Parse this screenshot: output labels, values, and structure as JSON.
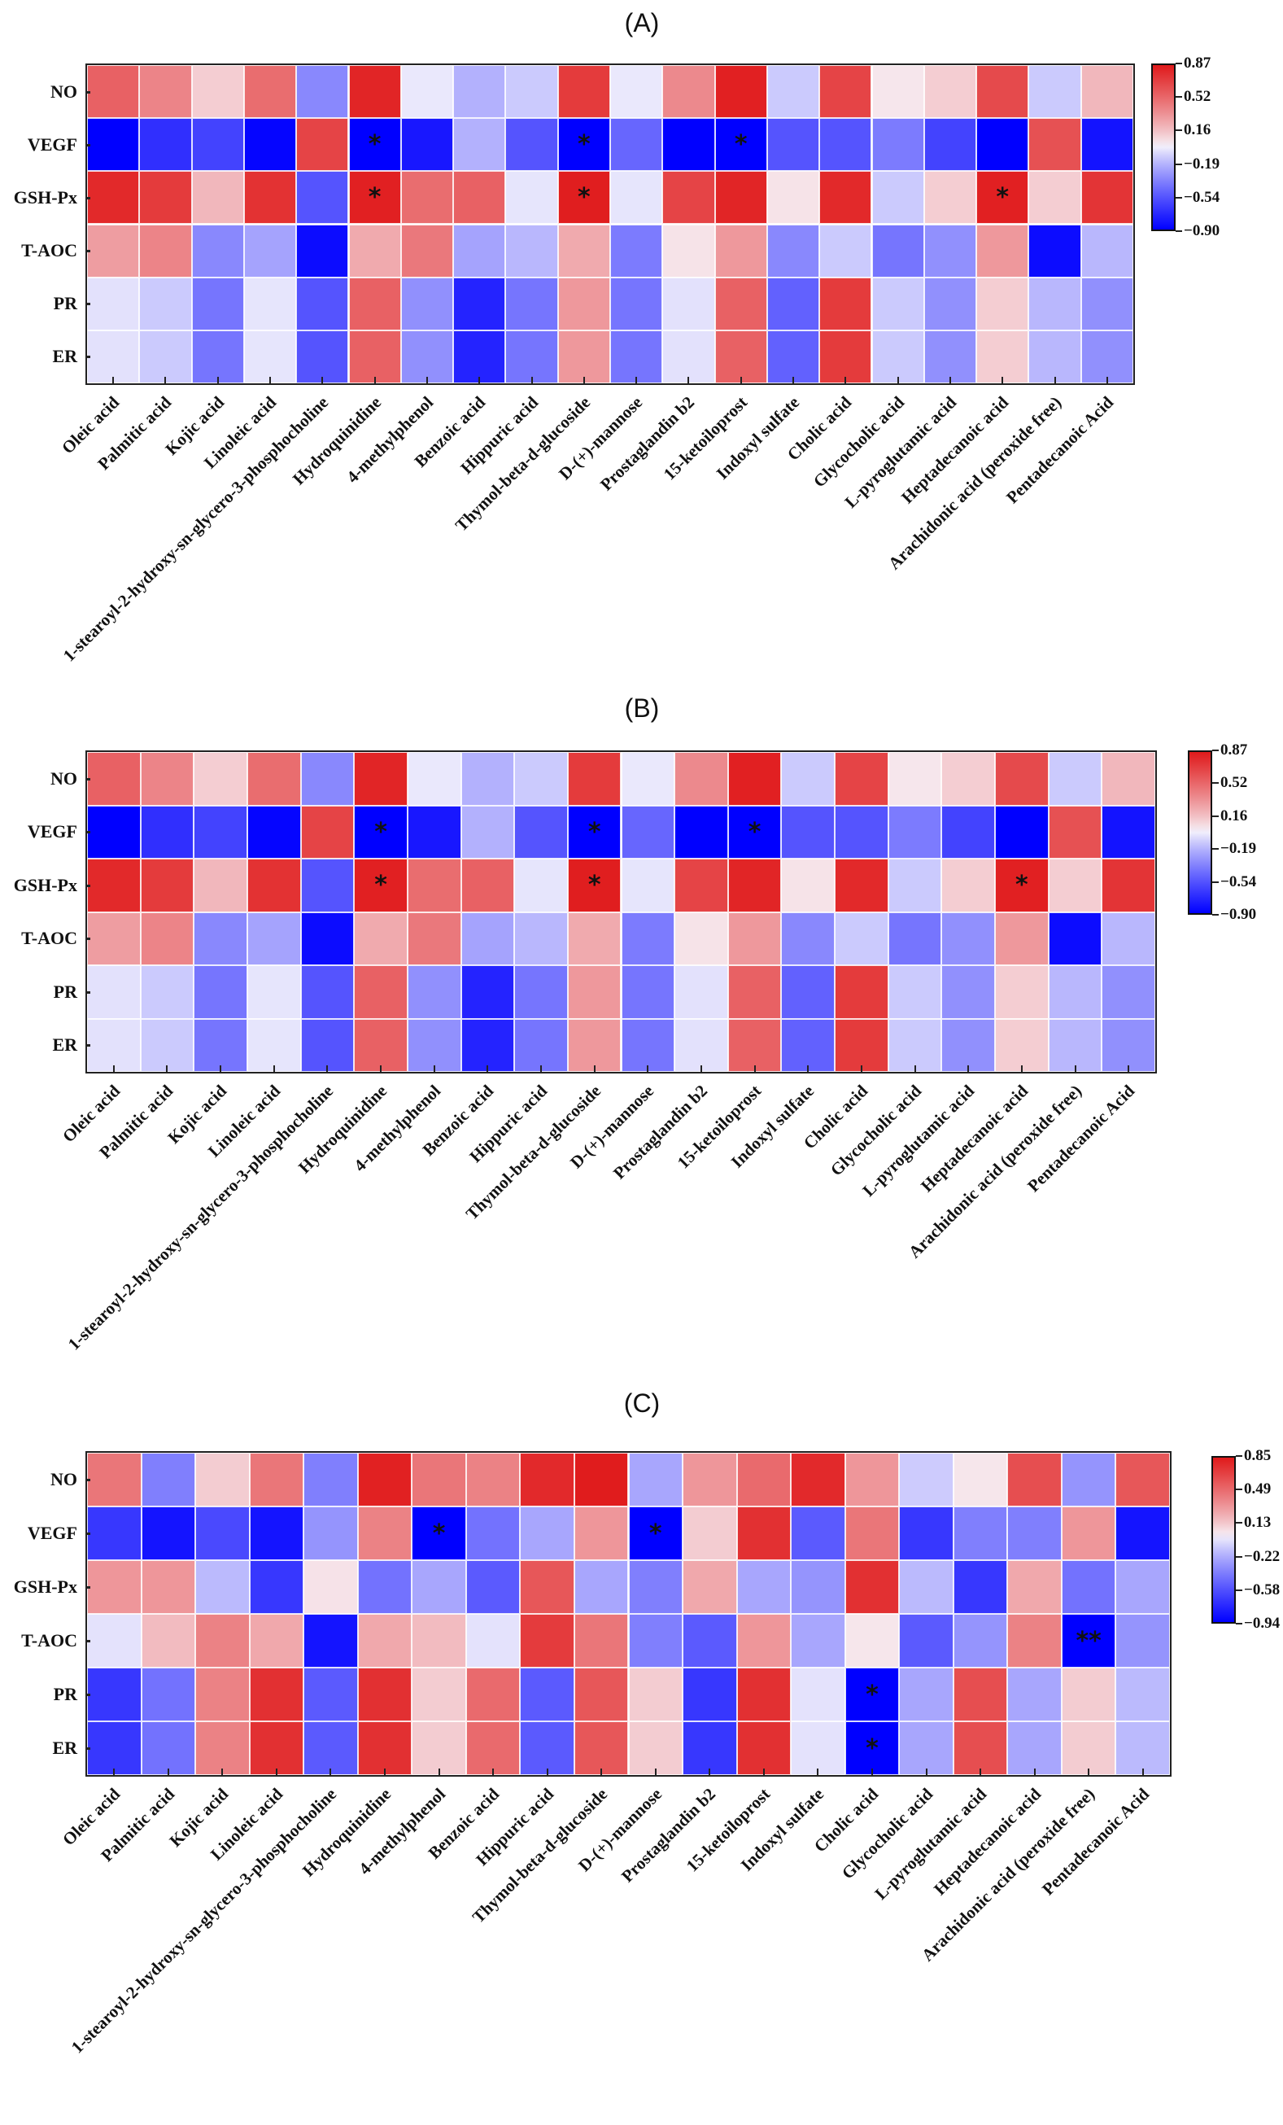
{
  "chart_data": [
    {
      "type": "heatmap",
      "title": "(A)",
      "rows": [
        "NO",
        "VEGF",
        "GSH-Px",
        "T-AOC",
        "PR",
        "ER"
      ],
      "columns": [
        "Oleic acid",
        "Palmitic acid",
        "Kojic acid",
        "Linoleic acid",
        "1-stearoyl-2-hydroxy-sn-glycero-3-phosphocholine",
        "Hydroquinidine",
        "4-methylphenol",
        "Benzoic acid",
        "Hippuric acid",
        "Thymol-beta-d-glucoside",
        "D-(+)-mannose",
        "Prostaglandin b2",
        "15-ketoiloprost",
        "Indoxyl sulfate",
        "Cholic acid",
        "Glycocholic acid",
        "L-pyroglutamic acid",
        "Heptadecanoic acid",
        "Arachidonic acid (peroxide free)",
        "Pentadecanoic Acid"
      ],
      "values": [
        [
          0.55,
          0.4,
          0.12,
          0.5,
          -0.35,
          0.82,
          -0.03,
          -0.2,
          -0.12,
          0.72,
          -0.03,
          0.38,
          0.84,
          -0.12,
          0.68,
          0.04,
          0.12,
          0.65,
          -0.12,
          0.2
        ],
        [
          -0.9,
          -0.7,
          -0.62,
          -0.88,
          0.68,
          -0.9,
          -0.8,
          -0.2,
          -0.55,
          -0.9,
          -0.48,
          -0.9,
          -0.9,
          -0.55,
          -0.55,
          -0.4,
          -0.62,
          -0.9,
          0.62,
          -0.82
        ],
        [
          0.8,
          0.72,
          0.2,
          0.76,
          -0.55,
          0.84,
          0.5,
          0.55,
          -0.04,
          0.85,
          -0.04,
          0.68,
          0.82,
          0.05,
          0.8,
          -0.12,
          0.12,
          0.84,
          0.12,
          0.75
        ],
        [
          0.3,
          0.4,
          -0.35,
          -0.25,
          -0.85,
          0.25,
          0.45,
          -0.25,
          -0.18,
          0.25,
          -0.4,
          0.05,
          0.32,
          -0.35,
          -0.12,
          -0.42,
          -0.32,
          0.32,
          -0.85,
          -0.18
        ],
        [
          -0.05,
          -0.12,
          -0.42,
          -0.04,
          -0.55,
          0.55,
          -0.32,
          -0.75,
          -0.42,
          0.32,
          -0.42,
          -0.05,
          0.55,
          -0.5,
          0.72,
          -0.12,
          -0.32,
          0.12,
          -0.18,
          -0.32
        ],
        [
          -0.05,
          -0.12,
          -0.42,
          -0.04,
          -0.55,
          0.55,
          -0.32,
          -0.75,
          -0.42,
          0.32,
          -0.42,
          -0.05,
          0.55,
          -0.5,
          0.72,
          -0.12,
          -0.32,
          0.12,
          -0.18,
          -0.32
        ]
      ],
      "significance": [
        [
          "",
          "",
          "",
          "",
          "",
          "",
          "",
          "",
          "",
          "",
          "",
          "",
          "",
          "",
          "",
          "",
          "",
          "",
          "",
          ""
        ],
        [
          "",
          "",
          "",
          "",
          "",
          "*",
          "",
          "",
          "",
          "*",
          "",
          "",
          "*",
          "",
          "",
          "",
          "",
          "",
          "",
          ""
        ],
        [
          "",
          "",
          "",
          "",
          "",
          "*",
          "",
          "",
          "",
          "*",
          "",
          "",
          "",
          "",
          "",
          "",
          "",
          "*",
          "",
          ""
        ],
        [
          "",
          "",
          "",
          "",
          "",
          "",
          "",
          "",
          "",
          "",
          "",
          "",
          "",
          "",
          "",
          "",
          "",
          "",
          "",
          ""
        ],
        [
          "",
          "",
          "",
          "",
          "",
          "",
          "",
          "",
          "",
          "",
          "",
          "",
          "",
          "",
          "",
          "",
          "",
          "",
          "",
          ""
        ],
        [
          "",
          "",
          "",
          "",
          "",
          "",
          "",
          "",
          "",
          "",
          "",
          "",
          "",
          "",
          "",
          "",
          "",
          "",
          "",
          ""
        ]
      ],
      "colorbar": {
        "min": -0.9,
        "max": 0.87,
        "ticks": [
          "0.87",
          "0.52",
          "0.16",
          "−0.19",
          "−0.54",
          "−0.90"
        ]
      }
    },
    {
      "type": "heatmap",
      "title": "(B)",
      "rows": [
        "NO",
        "VEGF",
        "GSH-Px",
        "T-AOC",
        "PR",
        "ER"
      ],
      "columns": [
        "Oleic acid",
        "Palmitic acid",
        "Kojic acid",
        "Linoleic acid",
        "1-stearoyl-2-hydroxy-sn-glycero-3-phosphocholine",
        "Hydroquinidine",
        "4-methylphenol",
        "Benzoic acid",
        "Hippuric acid",
        "Thymol-beta-d-glucoside",
        "D-(+)-mannose",
        "Prostaglandin b2",
        "15-ketoiloprost",
        "Indoxyl sulfate",
        "Cholic acid",
        "Glycocholic acid",
        "L-pyroglutamic acid",
        "Heptadecanoic acid",
        "Arachidonic acid (peroxide free)",
        "Pentadecanoic Acid"
      ],
      "values": [
        [
          0.55,
          0.4,
          0.12,
          0.5,
          -0.35,
          0.82,
          -0.03,
          -0.2,
          -0.12,
          0.72,
          -0.03,
          0.38,
          0.84,
          -0.12,
          0.68,
          0.04,
          0.12,
          0.65,
          -0.12,
          0.2
        ],
        [
          -0.9,
          -0.7,
          -0.62,
          -0.88,
          0.68,
          -0.9,
          -0.8,
          -0.2,
          -0.55,
          -0.9,
          -0.48,
          -0.9,
          -0.9,
          -0.55,
          -0.55,
          -0.4,
          -0.62,
          -0.9,
          0.62,
          -0.82
        ],
        [
          0.8,
          0.72,
          0.2,
          0.76,
          -0.55,
          0.84,
          0.5,
          0.55,
          -0.04,
          0.85,
          -0.04,
          0.68,
          0.82,
          0.05,
          0.8,
          -0.12,
          0.12,
          0.84,
          0.12,
          0.75
        ],
        [
          0.3,
          0.4,
          -0.35,
          -0.25,
          -0.85,
          0.25,
          0.45,
          -0.25,
          -0.18,
          0.25,
          -0.4,
          0.05,
          0.32,
          -0.35,
          -0.12,
          -0.42,
          -0.32,
          0.32,
          -0.85,
          -0.18
        ],
        [
          -0.05,
          -0.12,
          -0.42,
          -0.04,
          -0.55,
          0.55,
          -0.32,
          -0.75,
          -0.42,
          0.32,
          -0.42,
          -0.05,
          0.55,
          -0.5,
          0.72,
          -0.12,
          -0.32,
          0.12,
          -0.18,
          -0.32
        ],
        [
          -0.05,
          -0.12,
          -0.42,
          -0.04,
          -0.55,
          0.55,
          -0.32,
          -0.75,
          -0.42,
          0.32,
          -0.42,
          -0.05,
          0.55,
          -0.5,
          0.72,
          -0.12,
          -0.32,
          0.12,
          -0.18,
          -0.32
        ]
      ],
      "significance": [
        [
          "",
          "",
          "",
          "",
          "",
          "",
          "",
          "",
          "",
          "",
          "",
          "",
          "",
          "",
          "",
          "",
          "",
          "",
          "",
          ""
        ],
        [
          "",
          "",
          "",
          "",
          "",
          "*",
          "",
          "",
          "",
          "*",
          "",
          "",
          "*",
          "",
          "",
          "",
          "",
          "",
          "",
          ""
        ],
        [
          "",
          "",
          "",
          "",
          "",
          "*",
          "",
          "",
          "",
          "*",
          "",
          "",
          "",
          "",
          "",
          "",
          "",
          "*",
          "",
          ""
        ],
        [
          "",
          "",
          "",
          "",
          "",
          "",
          "",
          "",
          "",
          "",
          "",
          "",
          "",
          "",
          "",
          "",
          "",
          "",
          "",
          ""
        ],
        [
          "",
          "",
          "",
          "",
          "",
          "",
          "",
          "",
          "",
          "",
          "",
          "",
          "",
          "",
          "",
          "",
          "",
          "",
          "",
          ""
        ],
        [
          "",
          "",
          "",
          "",
          "",
          "",
          "",
          "",
          "",
          "",
          "",
          "",
          "",
          "",
          "",
          "",
          "",
          "",
          "",
          ""
        ]
      ],
      "colorbar": {
        "min": -0.9,
        "max": 0.87,
        "ticks": [
          "0.87",
          "0.52",
          "0.16",
          "−0.19",
          "−0.54",
          "−0.90"
        ]
      }
    },
    {
      "type": "heatmap",
      "title": "(C)",
      "rows": [
        "NO",
        "VEGF",
        "GSH-Px",
        "T-AOC",
        "PR",
        "ER"
      ],
      "columns": [
        "Oleic acid",
        "Palmitic acid",
        "Kojic acid",
        "Linoleic acid",
        "1-stearoyl-2-hydroxy-sn-glycero-3-phosphocholine",
        "Hydroquinidine",
        "4-methylphenol",
        "Benzoic acid",
        "Hippuric acid",
        "Thymol-beta-d-glucoside",
        "D-(+)-mannose",
        "Prostaglandin b2",
        "15-ketoiloprost",
        "Indoxyl sulfate",
        "Cholic acid",
        "Glycocholic acid",
        "L-pyroglutamic acid",
        "Heptadecanoic acid",
        "Arachidonic acid (peroxide free)",
        "Pentadecanoic Acid"
      ],
      "values": [
        [
          0.45,
          -0.4,
          0.12,
          0.45,
          -0.4,
          0.82,
          0.45,
          0.4,
          0.78,
          0.84,
          -0.25,
          0.32,
          0.5,
          0.78,
          0.32,
          -0.12,
          0.04,
          0.62,
          -0.32,
          0.58
        ],
        [
          -0.7,
          -0.85,
          -0.62,
          -0.85,
          -0.32,
          0.4,
          -0.94,
          -0.45,
          -0.25,
          0.32,
          -0.94,
          0.12,
          0.75,
          -0.55,
          0.45,
          -0.7,
          -0.4,
          -0.4,
          0.32,
          -0.85
        ],
        [
          0.32,
          0.32,
          -0.18,
          -0.7,
          0.05,
          -0.45,
          -0.25,
          -0.55,
          0.58,
          -0.25,
          -0.4,
          0.25,
          -0.25,
          -0.32,
          0.75,
          -0.18,
          -0.7,
          0.25,
          -0.45,
          -0.25
        ],
        [
          -0.05,
          0.18,
          0.4,
          0.25,
          -0.85,
          0.25,
          0.18,
          -0.05,
          0.7,
          0.45,
          -0.4,
          -0.55,
          0.32,
          -0.25,
          0.04,
          -0.55,
          -0.32,
          0.4,
          -0.94,
          -0.32
        ],
        [
          -0.7,
          -0.45,
          0.4,
          0.75,
          -0.55,
          0.75,
          0.12,
          0.5,
          -0.55,
          0.58,
          0.12,
          -0.7,
          0.75,
          -0.05,
          -0.94,
          -0.25,
          0.62,
          -0.25,
          0.12,
          -0.18
        ],
        [
          -0.7,
          -0.45,
          0.4,
          0.75,
          -0.55,
          0.75,
          0.12,
          0.5,
          -0.55,
          0.58,
          0.12,
          -0.7,
          0.75,
          -0.05,
          -0.94,
          -0.25,
          0.62,
          -0.25,
          0.12,
          -0.18
        ]
      ],
      "significance": [
        [
          "",
          "",
          "",
          "",
          "",
          "",
          "",
          "",
          "",
          "",
          "",
          "",
          "",
          "",
          "",
          "",
          "",
          "",
          "",
          ""
        ],
        [
          "",
          "",
          "",
          "",
          "",
          "",
          "*",
          "",
          "",
          "",
          "*",
          "",
          "",
          "",
          "",
          "",
          "",
          "",
          "",
          ""
        ],
        [
          "",
          "",
          "",
          "",
          "",
          "",
          "",
          "",
          "",
          "",
          "",
          "",
          "",
          "",
          "",
          "",
          "",
          "",
          "",
          ""
        ],
        [
          "",
          "",
          "",
          "",
          "",
          "",
          "",
          "",
          "",
          "",
          "",
          "",
          "",
          "",
          "",
          "",
          "",
          "",
          "**",
          ""
        ],
        [
          "",
          "",
          "",
          "",
          "",
          "",
          "",
          "",
          "",
          "",
          "",
          "",
          "",
          "",
          "*",
          "",
          "",
          "",
          "",
          ""
        ],
        [
          "",
          "",
          "",
          "",
          "",
          "",
          "",
          "",
          "",
          "",
          "",
          "",
          "",
          "",
          "*",
          "",
          "",
          "",
          "",
          ""
        ]
      ],
      "colorbar": {
        "min": -0.94,
        "max": 0.85,
        "ticks": [
          "0.85",
          "0.49",
          "0.13",
          "−0.22",
          "−0.58",
          "−0.94"
        ]
      }
    }
  ]
}
